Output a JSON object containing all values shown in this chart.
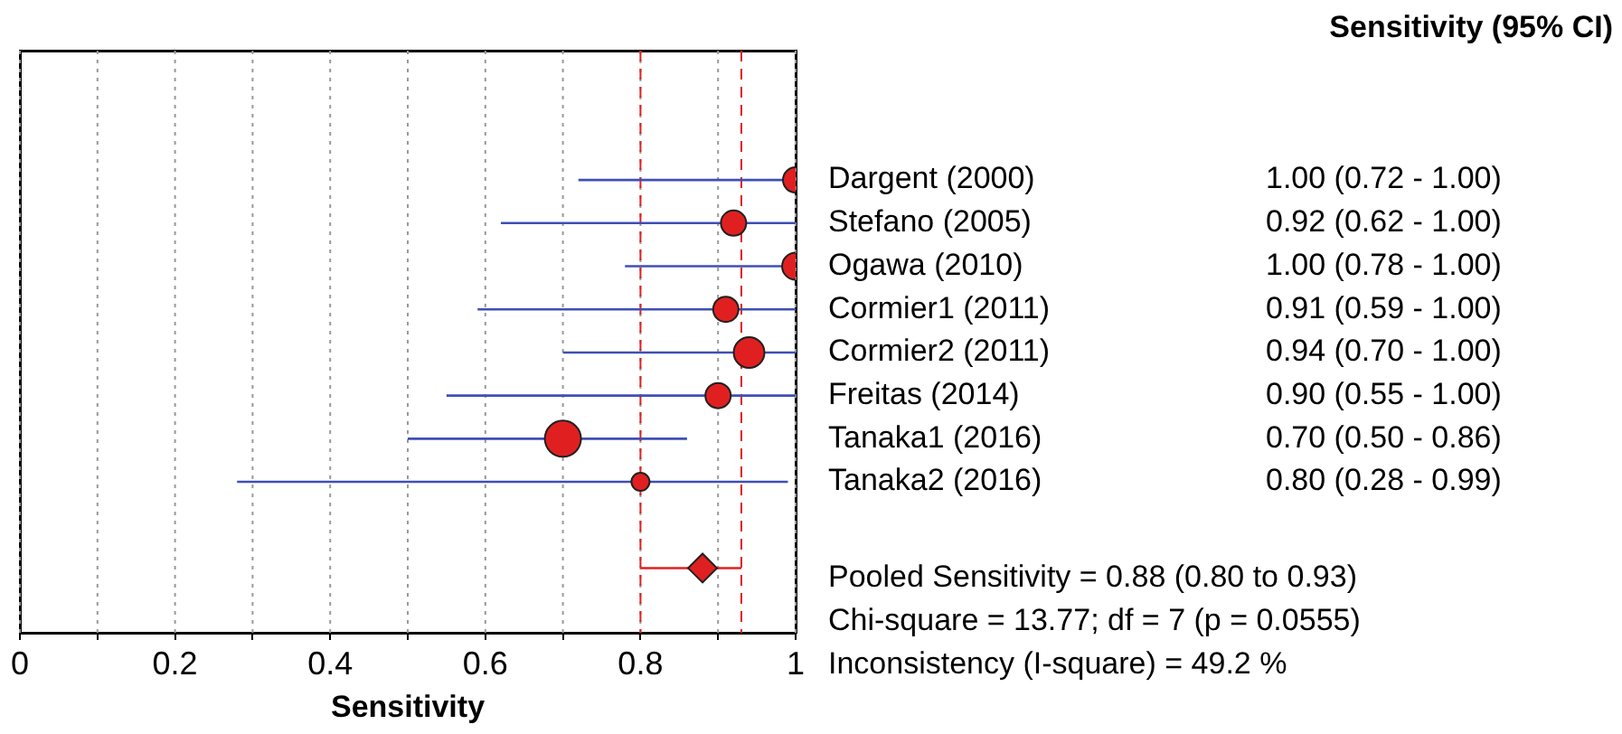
{
  "chart_data": {
    "type": "bubble",
    "orientation": "horizontal",
    "xlabel": "Sensitivity",
    "legend_title": "Sensitivity (95% CI)",
    "categories": [
      "Dargent (2000)",
      "Stefano (2005)",
      "Ogawa (2010)",
      "Cormier1 (2011)",
      "Cormier2 (2011)",
      "Freitas (2014)",
      "Tanaka1 (2016)",
      "Tanaka2 (2016)",
      null,
      null
    ],
    "series": [
      {
        "color": "#e02020",
        "marker": "circle",
        "values": [
          1.0,
          0.92,
          1.0,
          0.91,
          0.94,
          0.9,
          0.7,
          0.8,
          null,
          null
        ],
        "sizes": [
          0.49,
          0.49,
          0.56,
          0.49,
          0.72,
          0.49,
          1,
          0.25,
          null,
          null
        ],
        "errors": [
          [
            0.72,
            1.0
          ],
          [
            0.62,
            1.0
          ],
          [
            0.78,
            1.0
          ],
          [
            0.59,
            1.0
          ],
          [
            0.7,
            1.0
          ],
          [
            0.55,
            1.0
          ],
          [
            0.5,
            0.86
          ],
          [
            0.28,
            0.99
          ],
          null,
          null
        ],
        "value_labels": [
          "1.00 (0.72 - 1.00)",
          "0.92 (0.62 - 1.00)",
          "1.00 (0.78 - 1.00)",
          "0.91 (0.59 - 1.00)",
          "0.94 (0.70 - 1.00)",
          "0.90 (0.55 - 1.00)",
          "0.70 (0.50 - 0.86)",
          "0.80 (0.28 - 0.99)",
          null,
          null
        ]
      },
      {
        "type": "scatter",
        "color": "#e02020",
        "marker": "diamond",
        "values": [
          null,
          null,
          null,
          null,
          null,
          null,
          null,
          null,
          null,
          0.88
        ],
        "errors": [
          null,
          null,
          null,
          null,
          null,
          null,
          null,
          null,
          null,
          [
            0.8,
            0.93
          ]
        ]
      }
    ],
    "ref_lines": [
      {
        "axis": "x",
        "value": 0.8,
        "color": "#e02020",
        "line_style": "dashed"
      },
      {
        "axis": "x",
        "value": 0.93,
        "color": "#e02020",
        "line_style": "dashed"
      }
    ],
    "xlim": [
      0,
      1
    ],
    "xticks": [
      0,
      {
        "value": 0.1,
        "label": null
      },
      0.2,
      {
        "value": 0.3,
        "label": null
      },
      0.4,
      {
        "value": 0.5,
        "label": null
      },
      0.6,
      {
        "value": 0.7,
        "label": null
      },
      0.8,
      {
        "value": 0.9,
        "label": null
      },
      1
    ],
    "grid": "x",
    "legend": false,
    "tick_labels": "x",
    "annotations": [
      "Pooled Sensitivity = 0.88 (0.80 to 0.93)",
      "Chi-square = 13.77; df = 7 (p = 0.0555)",
      "Inconsistency (I-square) = 49.2 %"
    ]
  }
}
